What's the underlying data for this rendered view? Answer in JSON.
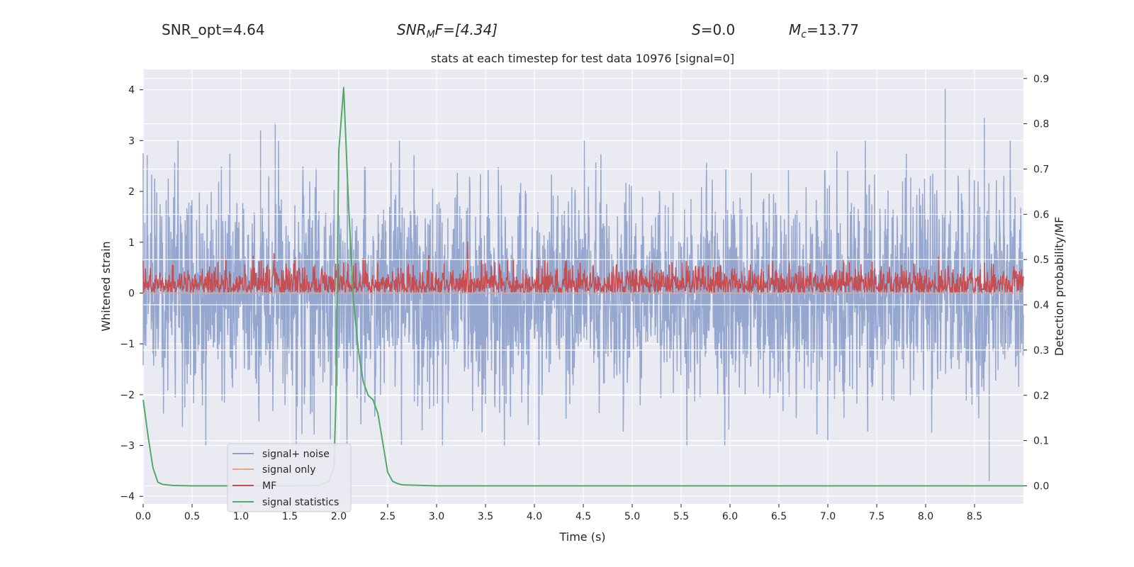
{
  "header": {
    "snr_opt": "SNR_opt=4.64",
    "snr_mf_main": "SNR",
    "snr_mf_sub": "M",
    "snr_mf_rest": "F=[4.34]",
    "s_var": "S",
    "s_rest": "=0.0",
    "mc_var": "M",
    "mc_sub": "c",
    "mc_rest": "=13.77"
  },
  "chart_data": {
    "type": "line",
    "title": "stats at each timestep for test data 10976 [signal=0]",
    "xlabel": "Time (s)",
    "ylabel": "Whitened strain",
    "ylabel_right": "Detection probability/MF",
    "xlim": [
      0,
      9
    ],
    "ylim": [
      -4.15,
      4.4
    ],
    "ylim_right": [
      -0.04,
      0.92
    ],
    "x_ticks": [
      0.0,
      0.5,
      1.0,
      1.5,
      2.0,
      2.5,
      3.0,
      3.5,
      4.0,
      4.5,
      5.0,
      5.5,
      6.0,
      6.5,
      7.0,
      7.5,
      8.0,
      8.5
    ],
    "x_tick_labels": [
      "0.0",
      "0.5",
      "1.0",
      "1.5",
      "2.0",
      "2.5",
      "3.0",
      "3.5",
      "4.0",
      "4.5",
      "5.0",
      "5.5",
      "6.0",
      "6.5",
      "7.0",
      "7.5",
      "8.0",
      "8.5"
    ],
    "y_ticks": [
      4,
      3,
      2,
      1,
      0,
      -1,
      -2,
      -3,
      -4
    ],
    "y_tick_labels": [
      "4",
      "3",
      "2",
      "1",
      "0",
      "−1",
      "−2",
      "−3",
      "−4"
    ],
    "y_ticks_right": [
      0.9,
      0.8,
      0.7,
      0.6,
      0.5,
      0.4,
      0.3,
      0.2,
      0.1,
      0.0
    ],
    "y_tick_labels_right": [
      "0.9",
      "0.8",
      "0.7",
      "0.6",
      "0.5",
      "0.4",
      "0.3",
      "0.2",
      "0.1",
      "0.0"
    ],
    "grid": true,
    "legend_position": "lower-left",
    "series": [
      {
        "name": "signal+ noise",
        "axis": "left",
        "color": "#8da0cb",
        "description_range": [
          -3.7,
          4.0
        ],
        "peaks": [
          {
            "x": 0.0,
            "y": 2.75
          },
          {
            "x": 1.2,
            "y": 3.2
          },
          {
            "x": 1.35,
            "y": 3.35
          },
          {
            "x": 8.2,
            "y": 4.02
          },
          {
            "x": 8.6,
            "y": 3.45
          },
          {
            "x": 8.65,
            "y": -3.7
          }
        ]
      },
      {
        "name": "signal only",
        "axis": "left",
        "color": "#e8a58c",
        "x": [
          0,
          9
        ],
        "y": [
          0,
          0
        ]
      },
      {
        "name": "MF",
        "axis": "right",
        "color": "#c44e52",
        "description_range": [
          0.425,
          0.54
        ]
      },
      {
        "name": "signal statistics",
        "axis": "right",
        "color": "#55a868",
        "x": [
          0.0,
          0.05,
          0.1,
          0.15,
          0.2,
          0.3,
          0.5,
          1.0,
          1.5,
          1.8,
          1.9,
          1.95,
          1.97,
          2.0,
          2.05,
          2.1,
          2.15,
          2.2,
          2.25,
          2.3,
          2.35,
          2.4,
          2.5,
          2.55,
          2.6,
          2.65,
          3.0,
          9.0
        ],
        "y": [
          0.19,
          0.11,
          0.04,
          0.008,
          0.003,
          0.001,
          0.0,
          0.0,
          0.0,
          0.001,
          0.01,
          0.04,
          0.18,
          0.74,
          0.88,
          0.62,
          0.41,
          0.3,
          0.23,
          0.2,
          0.19,
          0.16,
          0.03,
          0.01,
          0.005,
          0.002,
          0.0,
          0.0
        ]
      }
    ]
  }
}
